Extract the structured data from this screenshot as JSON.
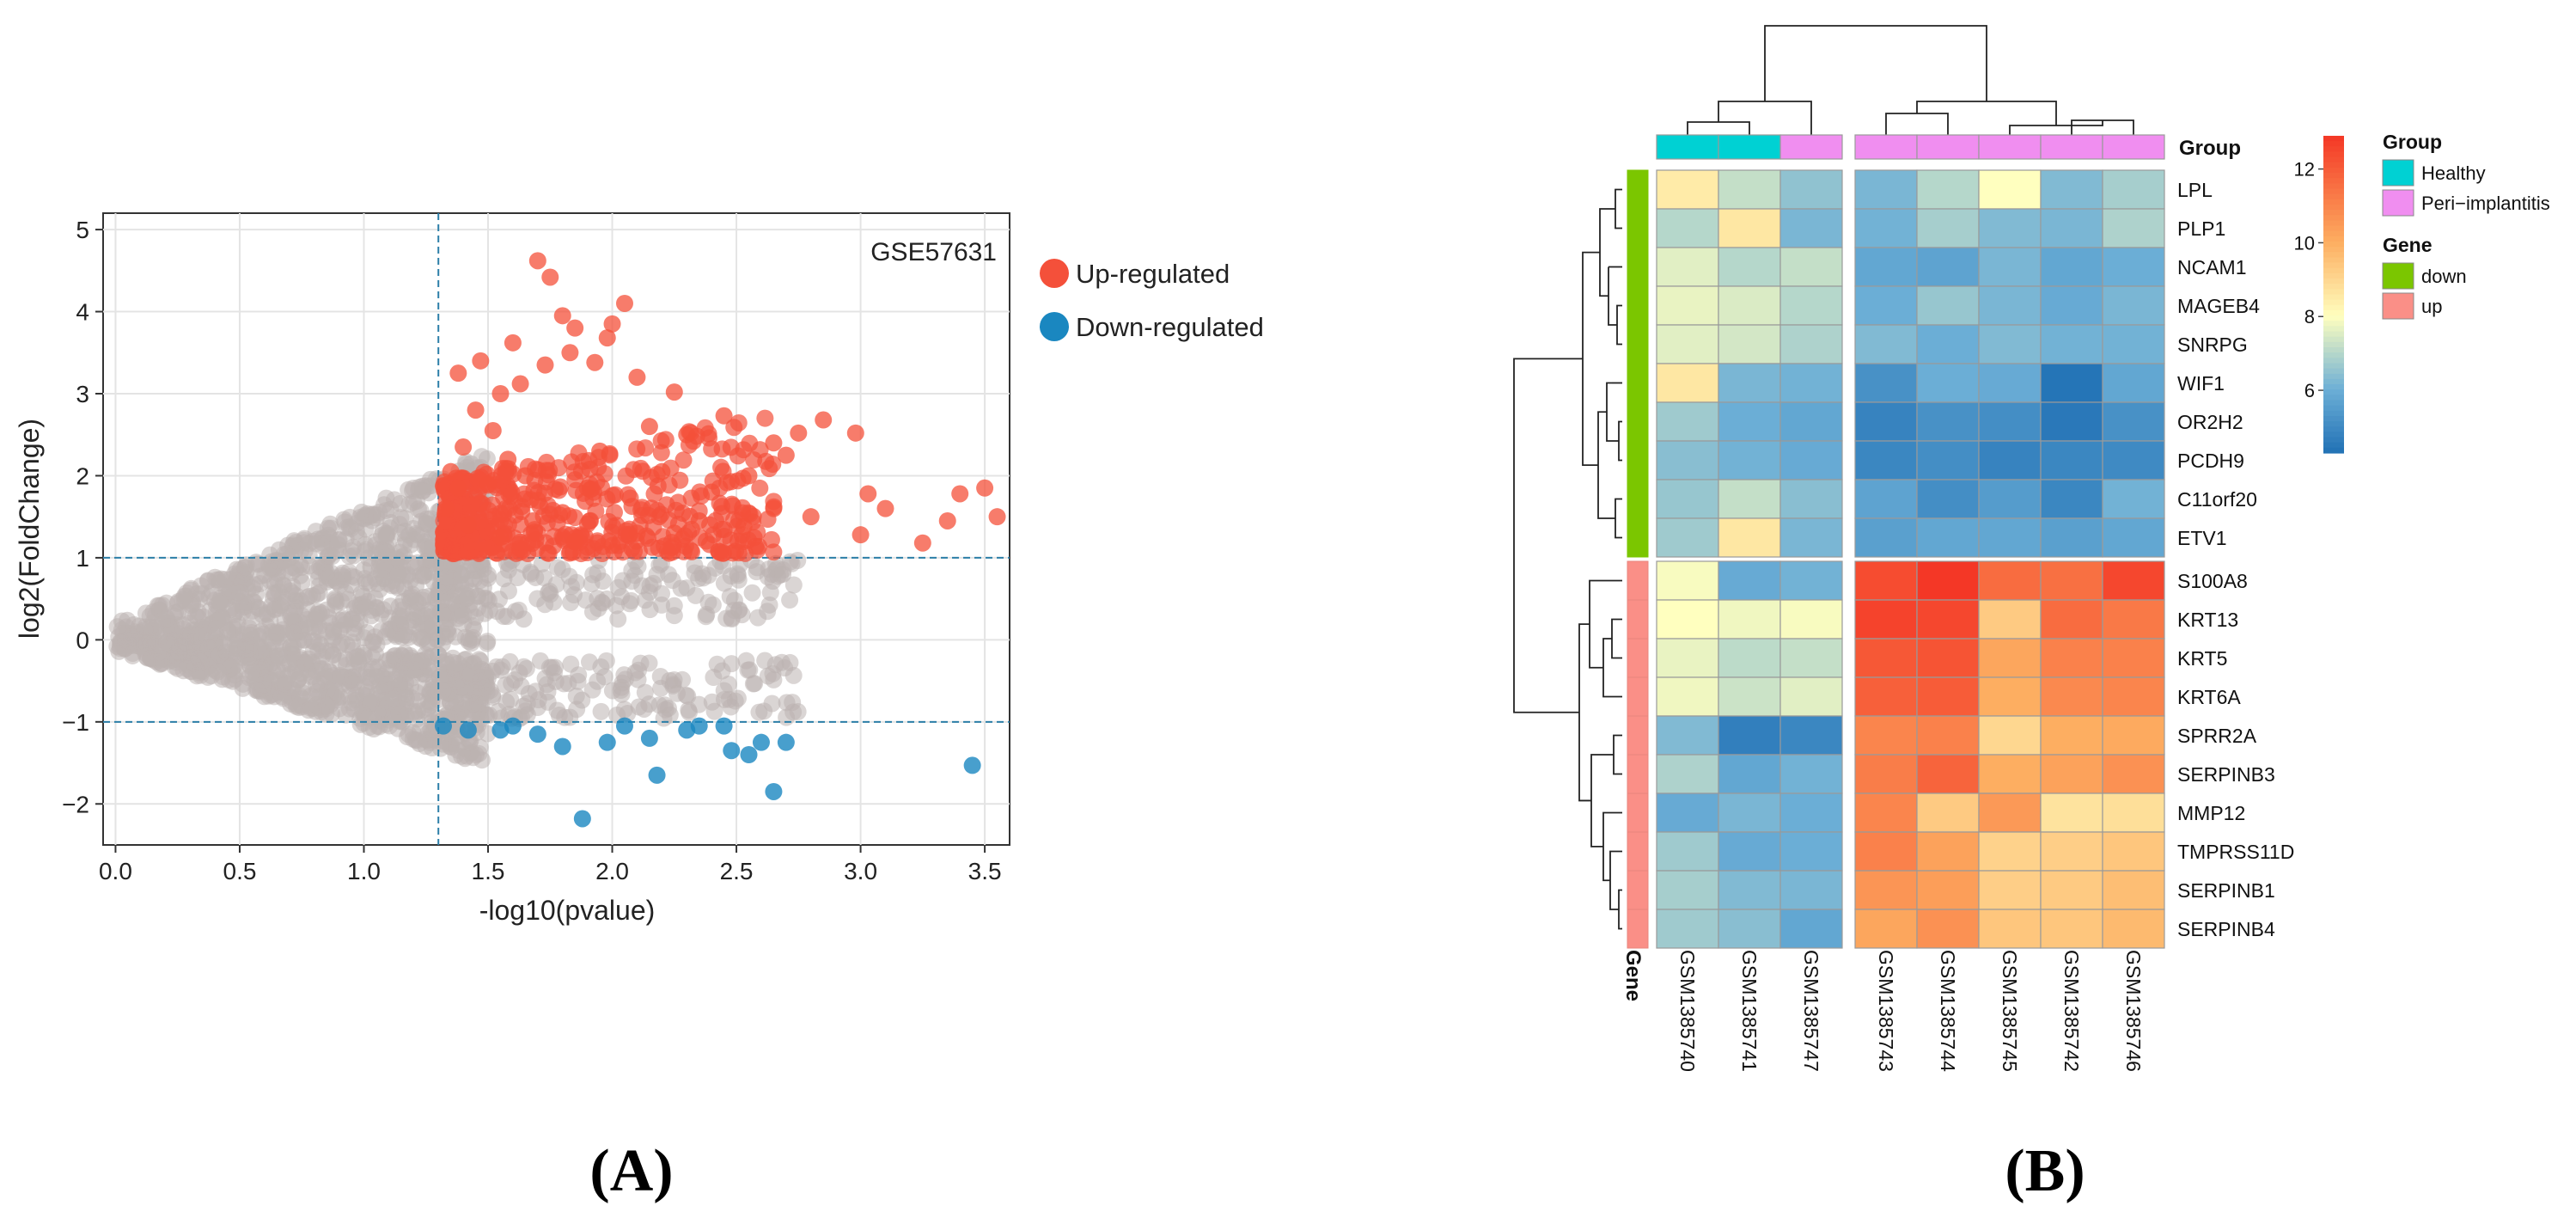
{
  "panel_labels": {
    "a": "(A)",
    "b": "(B)"
  },
  "chart_data": [
    {
      "type": "scatter",
      "subtype": "volcano",
      "title": "GSE57631",
      "xlabel": "-log10(pvalue)",
      "ylabel": "log2(FoldChange)",
      "xlim": [
        -0.05,
        3.6
      ],
      "ylim": [
        -2.5,
        5.2
      ],
      "xticks": [
        "0.0",
        "0.5",
        "1.0",
        "1.5",
        "2.0",
        "2.5",
        "3.0",
        "3.5"
      ],
      "yticks": [
        "5",
        "4",
        "3",
        "2",
        "1",
        "0",
        "−1",
        "−2"
      ],
      "thresholds": {
        "pvalue_line_x": 1.3,
        "fc_lines_y": [
          1,
          -1
        ]
      },
      "legend": {
        "position": "right",
        "items": [
          {
            "label": "Up-regulated",
            "color": "#f4503a"
          },
          {
            "label": "Down-regulated",
            "color": "#1a87c0"
          }
        ]
      },
      "colors": {
        "not_significant": "#bbb3b0",
        "up": "#f4503a",
        "down": "#1a87c0",
        "threshold_line": "#2c7fa8"
      },
      "series": [
        {
          "name": "Up-regulated",
          "points": [
            [
              1.7,
              4.62
            ],
            [
              1.75,
              4.42
            ],
            [
              2.05,
              4.1
            ],
            [
              1.8,
              3.95
            ],
            [
              2.0,
              3.85
            ],
            [
              1.85,
              3.8
            ],
            [
              1.98,
              3.68
            ],
            [
              1.6,
              3.62
            ],
            [
              1.83,
              3.5
            ],
            [
              1.47,
              3.4
            ],
            [
              1.73,
              3.35
            ],
            [
              1.93,
              3.38
            ],
            [
              2.1,
              3.2
            ],
            [
              1.38,
              3.25
            ],
            [
              2.25,
              3.02
            ],
            [
              1.63,
              3.12
            ],
            [
              1.55,
              3.0
            ],
            [
              2.45,
              2.73
            ],
            [
              2.85,
              2.68
            ],
            [
              2.75,
              2.52
            ],
            [
              2.98,
              2.52
            ],
            [
              2.65,
              2.4
            ],
            [
              2.7,
              2.25
            ],
            [
              3.03,
              1.78
            ],
            [
              3.5,
              1.85
            ],
            [
              3.4,
              1.78
            ],
            [
              3.55,
              1.5
            ],
            [
              3.1,
              1.6
            ],
            [
              3.35,
              1.45
            ],
            [
              3.25,
              1.18
            ],
            [
              3.0,
              1.28
            ],
            [
              2.55,
              2.0
            ],
            [
              2.65,
              1.6
            ],
            [
              2.53,
              1.38
            ],
            [
              2.8,
              1.5
            ],
            [
              2.3,
              2.5
            ],
            [
              2.2,
              2.05
            ],
            [
              2.35,
              1.45
            ],
            [
              2.4,
              1.8
            ],
            [
              1.45,
              2.8
            ],
            [
              1.52,
              2.55
            ],
            [
              1.4,
              2.35
            ],
            [
              1.58,
              2.2
            ],
            [
              1.65,
              2.0
            ],
            [
              1.5,
              1.9
            ],
            [
              1.7,
              1.7
            ],
            [
              1.8,
              1.55
            ],
            [
              1.9,
              1.85
            ],
            [
              1.95,
              2.3
            ],
            [
              2.15,
              2.6
            ],
            [
              2.1,
              1.3
            ],
            [
              2.25,
              1.3
            ],
            [
              1.35,
              2.05
            ],
            [
              1.33,
              1.6
            ],
            [
              1.42,
              1.4
            ],
            [
              1.55,
              1.25
            ],
            [
              1.68,
              1.45
            ],
            [
              1.85,
              1.2
            ],
            [
              2.0,
              1.15
            ],
            [
              1.38,
              1.85
            ]
          ]
        },
        {
          "name": "Down-regulated",
          "points": [
            [
              1.32,
              -1.05
            ],
            [
              1.42,
              -1.1
            ],
            [
              1.55,
              -1.1
            ],
            [
              1.7,
              -1.15
            ],
            [
              1.8,
              -1.3
            ],
            [
              1.88,
              -2.18
            ],
            [
              2.18,
              -1.65
            ],
            [
              2.05,
              -1.05
            ],
            [
              2.3,
              -1.1
            ],
            [
              2.45,
              -1.05
            ],
            [
              2.6,
              -1.25
            ],
            [
              2.65,
              -1.85
            ],
            [
              2.7,
              -1.25
            ],
            [
              2.48,
              -1.35
            ],
            [
              2.55,
              -1.4
            ],
            [
              3.45,
              -1.53
            ],
            [
              1.98,
              -1.25
            ],
            [
              2.15,
              -1.2
            ],
            [
              1.6,
              -1.05
            ],
            [
              2.35,
              -1.05
            ]
          ]
        }
      ]
    },
    {
      "type": "heatmap",
      "subtype": "clustered",
      "columns": [
        "GSM1385740",
        "GSM1385741",
        "GSM1385747",
        "GSM1385743",
        "GSM1385744",
        "GSM1385745",
        "GSM1385742",
        "GSM1385746"
      ],
      "column_groups": [
        "Healthy",
        "Healthy",
        "Peri−implantitis",
        "Peri−implantitis",
        "Peri−implantitis",
        "Peri−implantitis",
        "Peri−implantitis",
        "Peri−implantitis"
      ],
      "rows": [
        "LPL",
        "PLP1",
        "NCAM1",
        "MAGEB4",
        "SNRPG",
        "WIF1",
        "OR2H2",
        "PCDH9",
        "C11orf20",
        "ETV1",
        "S100A8",
        "KRT13",
        "KRT5",
        "KRT6A",
        "SPRR2A",
        "SERPINB3",
        "MMP12",
        "TMPRSS11D",
        "SERPINB1",
        "SERPINB4"
      ],
      "row_genes": [
        "down",
        "down",
        "down",
        "down",
        "down",
        "down",
        "down",
        "down",
        "down",
        "down",
        "up",
        "up",
        "up",
        "up",
        "up",
        "up",
        "up",
        "up",
        "up",
        "up"
      ],
      "annotation_labels": {
        "group": "Group",
        "gene": "Gene"
      },
      "values": [
        [
          8.5,
          7.2,
          6.5,
          6.2,
          7.0,
          8.0,
          6.3,
          6.8
        ],
        [
          7.0,
          8.6,
          6.2,
          6.1,
          6.8,
          6.3,
          6.2,
          6.9
        ],
        [
          7.6,
          7.0,
          7.2,
          5.8,
          5.7,
          6.2,
          5.8,
          6.0
        ],
        [
          7.7,
          7.5,
          7.0,
          6.0,
          6.6,
          6.2,
          5.9,
          6.2
        ],
        [
          7.6,
          7.4,
          6.9,
          6.3,
          6.0,
          6.3,
          6.1,
          6.1
        ],
        [
          8.6,
          6.2,
          6.1,
          5.2,
          6.0,
          5.9,
          4.4,
          5.8
        ],
        [
          6.7,
          6.0,
          5.8,
          4.8,
          5.2,
          5.1,
          4.5,
          5.2
        ],
        [
          6.4,
          6.1,
          5.9,
          4.9,
          5.1,
          4.8,
          4.9,
          5.0
        ],
        [
          6.6,
          7.2,
          6.4,
          5.7,
          5.1,
          5.5,
          4.9,
          6.1
        ],
        [
          6.7,
          8.6,
          6.2,
          5.6,
          5.8,
          5.8,
          5.6,
          5.8
        ],
        [
          7.9,
          5.9,
          6.1,
          12.4,
          12.9,
          11.6,
          11.5,
          12.5
        ],
        [
          8.0,
          7.8,
          7.9,
          12.6,
          12.5,
          9.3,
          11.6,
          11.3
        ],
        [
          7.7,
          7.1,
          7.2,
          12.1,
          12.2,
          10.2,
          11.1,
          11.1
        ],
        [
          7.8,
          7.3,
          7.6,
          11.9,
          12.0,
          10.0,
          10.9,
          11.0
        ],
        [
          6.3,
          4.7,
          4.9,
          11.0,
          11.1,
          9.0,
          10.0,
          10.1
        ],
        [
          6.9,
          5.8,
          6.1,
          11.2,
          11.8,
          10.0,
          10.3,
          10.7
        ],
        [
          5.9,
          6.2,
          6.0,
          11.0,
          9.3,
          10.5,
          8.7,
          8.8
        ],
        [
          6.7,
          5.9,
          6.0,
          11.1,
          10.3,
          9.1,
          9.2,
          9.4
        ],
        [
          6.8,
          6.3,
          6.2,
          10.6,
          10.4,
          9.2,
          9.3,
          9.6
        ],
        [
          6.7,
          6.4,
          5.8,
          10.2,
          10.7,
          9.4,
          9.4,
          9.7
        ]
      ],
      "colorbar": {
        "ticks": [
          "12",
          "10",
          "8",
          "6"
        ],
        "range": [
          4.3,
          12.9
        ]
      },
      "legend": {
        "group": [
          {
            "label": "Healthy",
            "color": "#00d1d3"
          },
          {
            "label": "Peri−implantitis",
            "color": "#f08ef0"
          }
        ],
        "gene": [
          {
            "label": "down",
            "color": "#7bc600"
          },
          {
            "label": "up",
            "color": "#fa8f87"
          }
        ]
      }
    }
  ]
}
